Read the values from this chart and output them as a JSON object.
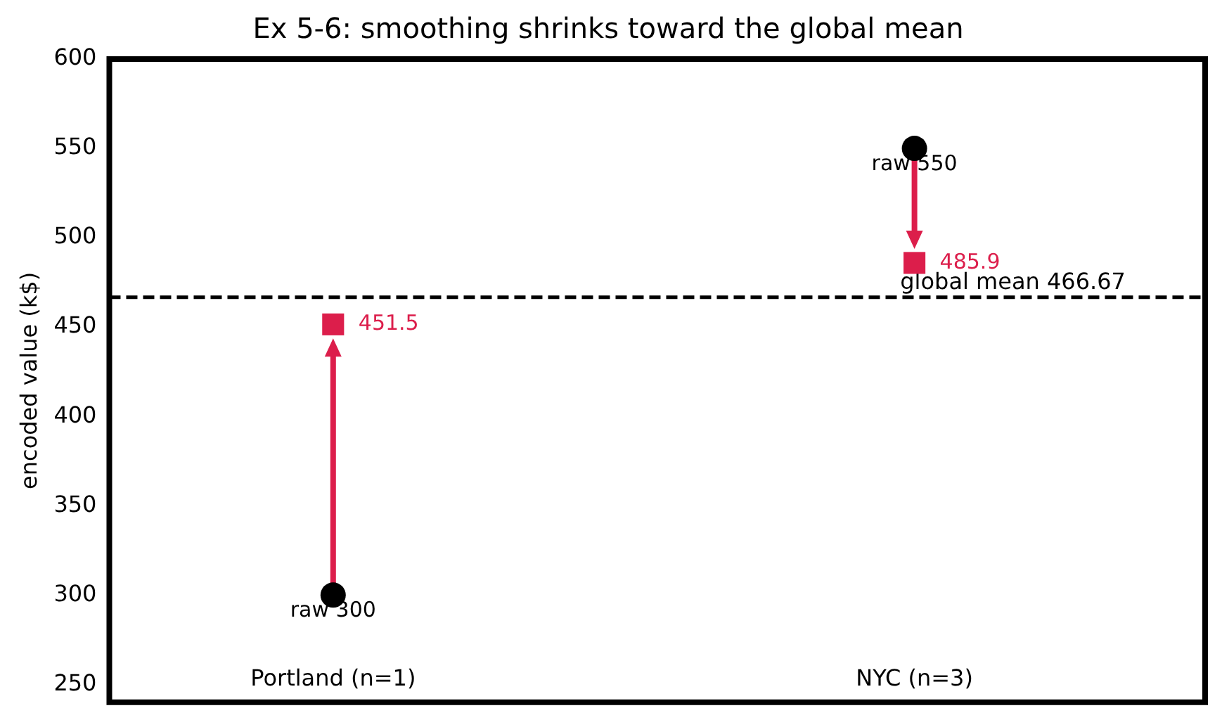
{
  "chart_data": {
    "type": "scatter",
    "title": "Ex 5-6: smoothing shrinks toward the global mean",
    "ylabel": "encoded value (k$)",
    "categories": [
      "Portland (n=1)",
      "NYC (n=3)"
    ],
    "series": [
      {
        "color": "#000000",
        "marker": "circle",
        "values": [
          300,
          550
        ],
        "value_labels": [
          "raw 300",
          "raw 550"
        ]
      },
      {
        "color": "#dc1e4b",
        "marker": "square",
        "values": [
          451.5,
          485.9
        ],
        "value_labels": [
          "451.5",
          "485.9"
        ]
      }
    ],
    "ref_lines": [
      {
        "axis": "y",
        "value": 466.67,
        "label": "global mean 466.67",
        "color": "#000000",
        "line_style": "dashed"
      }
    ],
    "ylim": [
      240,
      600
    ],
    "yticks": [
      250,
      300,
      350,
      400,
      450,
      500,
      550,
      600
    ],
    "grid": false,
    "legend": false,
    "tick_labels": "y"
  }
}
